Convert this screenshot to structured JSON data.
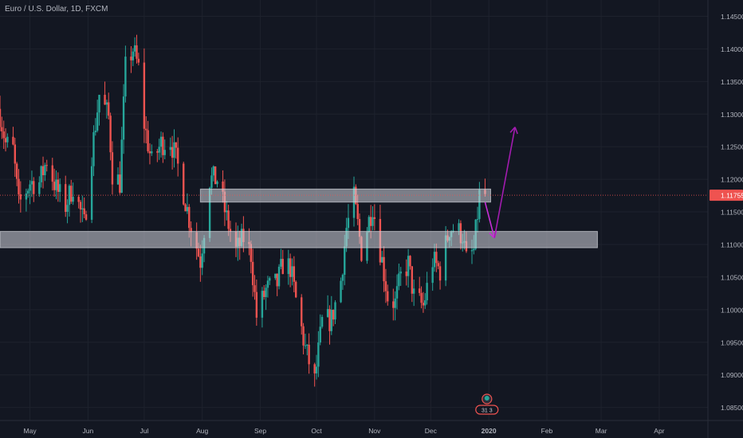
{
  "header": {
    "symbol": "Euro / U.S. Dollar",
    "interval": "1D",
    "exchange": "FXCM",
    "title_text": "Euro / U.S. Dollar, 1D, FXCM"
  },
  "colors": {
    "background": "#131722",
    "grid": "#1e222d",
    "up": "#26a69a",
    "down": "#ef5350",
    "axis_text": "#b2b5be",
    "current_price_line": "#ef5350",
    "zone_fill": "#d1d4dc",
    "arrow_down": "#c62fd6",
    "arrow_up": "#a21caf"
  },
  "chart_data": {
    "type": "candlestick",
    "title": "Euro / U.S. Dollar, 1D, FXCM",
    "x_axis_labels": [
      "May",
      "Jun",
      "Jul",
      "Aug",
      "Sep",
      "Oct",
      "Nov",
      "Dec",
      "2020",
      "Feb",
      "Mar",
      "Apr"
    ],
    "x_axis_dates": [
      "2019-05-01",
      "2019-06-01",
      "2019-07-01",
      "2019-08-01",
      "2019-09-01",
      "2019-10-01",
      "2019-11-01",
      "2019-12-01",
      "2020-01-01",
      "2020-02-01",
      "2020-03-01",
      "2020-04-01"
    ],
    "x_range": [
      "2019-04-15",
      "2020-04-27"
    ],
    "y_tick_labels": [
      "1.14500",
      "1.14000",
      "1.13500",
      "1.13000",
      "1.12500",
      "1.12000",
      "1.11500",
      "1.11000",
      "1.10500",
      "1.10000",
      "1.09500",
      "1.09000",
      "1.08500"
    ],
    "y_range": [
      1.083,
      1.1475
    ],
    "last_price": 1.11755,
    "last_price_label": "1.11755",
    "grid": true,
    "close_path": [
      [
        "2019-04-15",
        1.13
      ],
      [
        "2019-04-18",
        1.1255
      ],
      [
        "2019-04-22",
        1.1245
      ],
      [
        "2019-04-25",
        1.116
      ],
      [
        "2019-05-01",
        1.1195
      ],
      [
        "2019-05-06",
        1.1195
      ],
      [
        "2019-05-10",
        1.123
      ],
      [
        "2019-05-15",
        1.1185
      ],
      [
        "2019-05-20",
        1.116
      ],
      [
        "2019-05-24",
        1.119
      ],
      [
        "2019-05-30",
        1.113
      ],
      [
        "2019-06-03",
        1.124
      ],
      [
        "2019-06-07",
        1.133
      ],
      [
        "2019-06-12",
        1.1295
      ],
      [
        "2019-06-14",
        1.121
      ],
      [
        "2019-06-18",
        1.1195
      ],
      [
        "2019-06-21",
        1.137
      ],
      [
        "2019-06-25",
        1.14
      ],
      [
        "2019-06-28",
        1.137
      ],
      [
        "2019-07-01",
        1.1285
      ],
      [
        "2019-07-05",
        1.1225
      ],
      [
        "2019-07-10",
        1.1255
      ],
      [
        "2019-07-15",
        1.126
      ],
      [
        "2019-07-19",
        1.122
      ],
      [
        "2019-07-25",
        1.114
      ],
      [
        "2019-07-31",
        1.1075
      ],
      [
        "2019-08-05",
        1.12
      ],
      [
        "2019-08-09",
        1.12
      ],
      [
        "2019-08-14",
        1.114
      ],
      [
        "2019-08-19",
        1.109
      ],
      [
        "2019-08-23",
        1.111
      ],
      [
        "2019-08-27",
        1.1085
      ],
      [
        "2019-08-30",
        1.099
      ],
      [
        "2019-09-04",
        1.103
      ],
      [
        "2019-09-10",
        1.104
      ],
      [
        "2019-09-13",
        1.107
      ],
      [
        "2019-09-17",
        1.1065
      ],
      [
        "2019-09-20",
        1.1015
      ],
      [
        "2019-09-25",
        1.094
      ],
      [
        "2019-09-30",
        1.089
      ],
      [
        "2019-10-04",
        1.098
      ],
      [
        "2019-10-09",
        1.0985
      ],
      [
        "2019-10-14",
        1.1045
      ],
      [
        "2019-10-17",
        1.1125
      ],
      [
        "2019-10-21",
        1.117
      ],
      [
        "2019-10-25",
        1.109
      ],
      [
        "2019-10-31",
        1.116
      ],
      [
        "2019-11-05",
        1.1075
      ],
      [
        "2019-11-08",
        1.102
      ],
      [
        "2019-11-12",
        1.101
      ],
      [
        "2019-11-15",
        1.105
      ],
      [
        "2019-11-19",
        1.107
      ],
      [
        "2019-11-22",
        1.102
      ],
      [
        "2019-11-27",
        1.1005
      ],
      [
        "2019-12-02",
        1.1075
      ],
      [
        "2019-12-06",
        1.106
      ],
      [
        "2019-12-11",
        1.1125
      ],
      [
        "2019-12-13",
        1.1125
      ],
      [
        "2019-12-18",
        1.1115
      ],
      [
        "2019-12-20",
        1.1075
      ],
      [
        "2019-12-24",
        1.109
      ],
      [
        "2019-12-27",
        1.1175
      ],
      [
        "2019-12-30",
        1.1176
      ]
    ],
    "zones": [
      {
        "name": "resistance-zone",
        "from_date": "2019-07-31",
        "to_date": "2020-01-02",
        "y_low": 1.1165,
        "y_high": 1.1185
      },
      {
        "name": "support-zone",
        "from_date": "2019-04-15",
        "to_date": "2020-02-28",
        "y_low": 1.1095,
        "y_high": 1.112
      }
    ],
    "projection": {
      "down_leg": [
        [
          "2019-12-30",
          1.1165
        ],
        [
          "2020-01-04",
          1.111
        ]
      ],
      "up_leg": [
        [
          "2020-01-04",
          1.111
        ],
        [
          "2020-01-15",
          1.128
        ]
      ]
    }
  },
  "badge": {
    "label": "31  3"
  }
}
